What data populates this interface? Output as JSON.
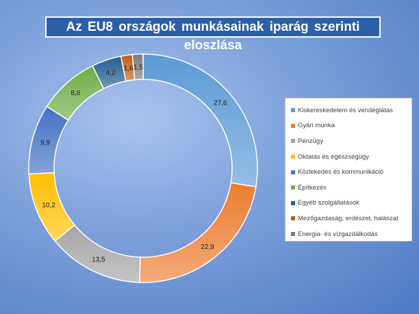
{
  "chart_data": {
    "type": "pie",
    "title": "Az EU8 országok munkásainak iparág szerinti eloszlása",
    "donut": true,
    "legend_position": "right",
    "slices": [
      {
        "label": "Kiskereskedelem és vendéglátás",
        "value": 27.6,
        "display": "27,6",
        "color": "#5b9bd5"
      },
      {
        "label": "Gyári munka",
        "value": 22.9,
        "display": "22,9",
        "color": "#ed7d31"
      },
      {
        "label": "Pénzügy",
        "value": 13.5,
        "display": "13,5",
        "color": "#a5a5a5"
      },
      {
        "label": "Oktatás és egészségügy",
        "value": 10.2,
        "display": "10,2",
        "color": "#ffc000"
      },
      {
        "label": "Közlekedés és kommunikáció",
        "value": 9.9,
        "display": "9,9",
        "color": "#4472c4"
      },
      {
        "label": "Építkezés",
        "value": 8.6,
        "display": "8,6",
        "color": "#70ad47"
      },
      {
        "label": "Egyéb szolgáltatások",
        "value": 4.2,
        "display": "4,2",
        "color": "#255e91"
      },
      {
        "label": "Mezőgazdaság, erdészet, halászat",
        "value": 1.6,
        "display": "1,6",
        "color": "#c55a11"
      },
      {
        "label": "Energia- és vízgazdálkodás",
        "value": 1.5,
        "display": "1,5",
        "color": "#7b7b7b"
      }
    ]
  }
}
